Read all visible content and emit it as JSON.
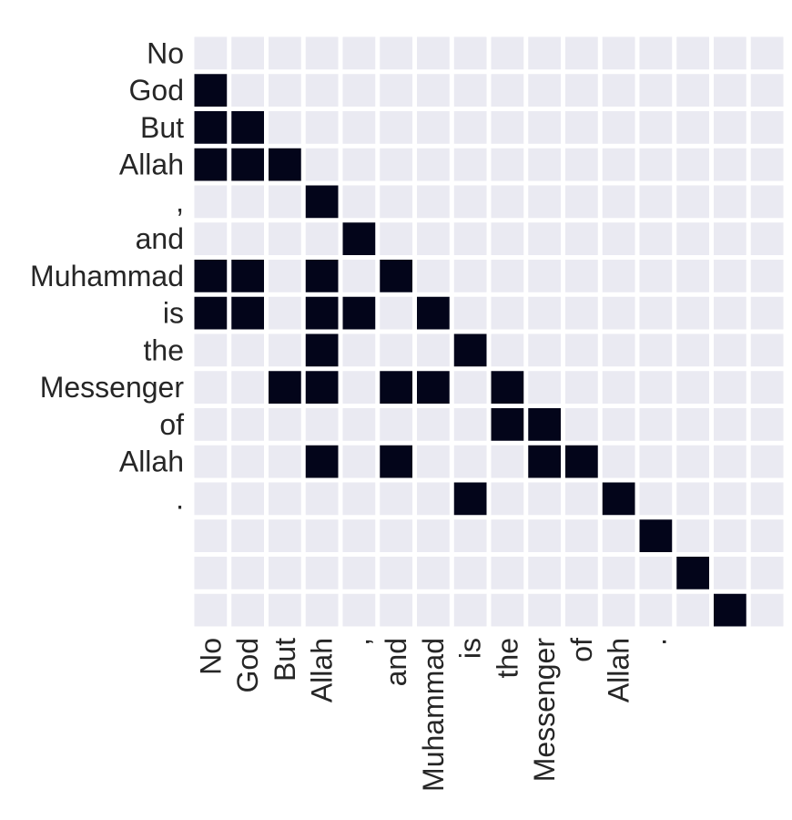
{
  "chart_data": {
    "type": "heatmap",
    "title": "",
    "xlabel": "",
    "ylabel": "",
    "y_tick_labels": [
      "No",
      "God",
      "But",
      "Allah",
      ",",
      "and",
      "Muhammad",
      "is",
      "the",
      "Messenger",
      "of",
      "Allah",
      ".",
      "",
      "",
      ""
    ],
    "x_tick_labels": [
      "No",
      "God",
      "But",
      "Allah",
      ",",
      "and",
      "Muhammad",
      "is",
      "the",
      "Messenger",
      "of",
      "Allah",
      ".",
      "",
      "",
      ""
    ],
    "value_range": [
      0,
      1
    ],
    "grid": false,
    "colors": {
      "cell_off": "#eaeaf2",
      "cell_on": "#03051a",
      "background": "#ffffff"
    },
    "matrix": [
      [
        0,
        0,
        0,
        0,
        0,
        0,
        0,
        0,
        0,
        0,
        0,
        0,
        0,
        0,
        0,
        0
      ],
      [
        1,
        0,
        0,
        0,
        0,
        0,
        0,
        0,
        0,
        0,
        0,
        0,
        0,
        0,
        0,
        0
      ],
      [
        1,
        1,
        0,
        0,
        0,
        0,
        0,
        0,
        0,
        0,
        0,
        0,
        0,
        0,
        0,
        0
      ],
      [
        1,
        1,
        1,
        0,
        0,
        0,
        0,
        0,
        0,
        0,
        0,
        0,
        0,
        0,
        0,
        0
      ],
      [
        0,
        0,
        0,
        1,
        0,
        0,
        0,
        0,
        0,
        0,
        0,
        0,
        0,
        0,
        0,
        0
      ],
      [
        0,
        0,
        0,
        0,
        1,
        0,
        0,
        0,
        0,
        0,
        0,
        0,
        0,
        0,
        0,
        0
      ],
      [
        1,
        1,
        0,
        1,
        0,
        1,
        0,
        0,
        0,
        0,
        0,
        0,
        0,
        0,
        0,
        0
      ],
      [
        1,
        1,
        0,
        1,
        1,
        0,
        1,
        0,
        0,
        0,
        0,
        0,
        0,
        0,
        0,
        0
      ],
      [
        0,
        0,
        0,
        1,
        0,
        0,
        0,
        1,
        0,
        0,
        0,
        0,
        0,
        0,
        0,
        0
      ],
      [
        0,
        0,
        1,
        1,
        0,
        1,
        1,
        0,
        1,
        0,
        0,
        0,
        0,
        0,
        0,
        0
      ],
      [
        0,
        0,
        0,
        0,
        0,
        0,
        0,
        0,
        1,
        1,
        0,
        0,
        0,
        0,
        0,
        0
      ],
      [
        0,
        0,
        0,
        1,
        0,
        1,
        0,
        0,
        0,
        1,
        1,
        0,
        0,
        0,
        0,
        0
      ],
      [
        0,
        0,
        0,
        0,
        0,
        0,
        0,
        1,
        0,
        0,
        0,
        1,
        0,
        0,
        0,
        0
      ],
      [
        0,
        0,
        0,
        0,
        0,
        0,
        0,
        0,
        0,
        0,
        0,
        0,
        1,
        0,
        0,
        0
      ],
      [
        0,
        0,
        0,
        0,
        0,
        0,
        0,
        0,
        0,
        0,
        0,
        0,
        0,
        1,
        0,
        0
      ],
      [
        0,
        0,
        0,
        0,
        0,
        0,
        0,
        0,
        0,
        0,
        0,
        0,
        0,
        0,
        1,
        0
      ]
    ]
  }
}
